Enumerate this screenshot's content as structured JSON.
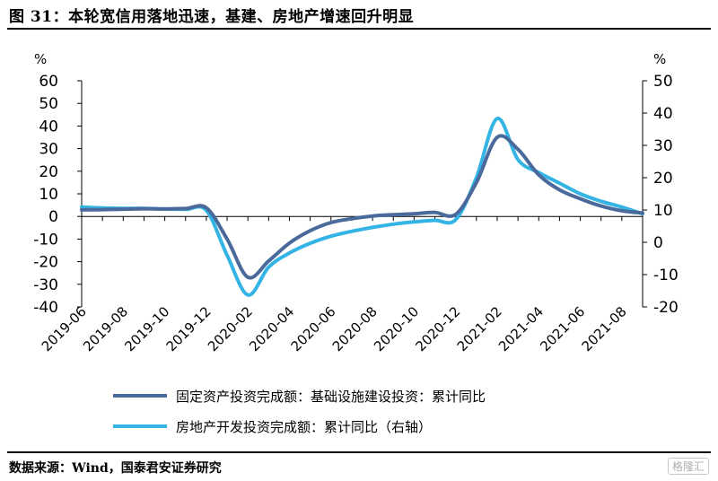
{
  "header": {
    "title": "图 31：本轮宽信用落地迅速，基建、房地产增速回升明显"
  },
  "footer": {
    "source": "数据来源：Wind，国泰君安证券研究",
    "watermark": "格隆汇"
  },
  "chart_data": {
    "type": "line",
    "title": "图 31：本轮宽信用落地迅速，基建、房地产增速回升明显",
    "ylabel_left": "%",
    "ylabel_right": "%",
    "ylim_left": [
      -40,
      60
    ],
    "ylim_right": [
      -20,
      50
    ],
    "yticks_left": [
      60,
      50,
      40,
      30,
      20,
      10,
      0,
      -10,
      -20,
      -30,
      -40
    ],
    "yticks_right": [
      50,
      40,
      30,
      20,
      10,
      0,
      -10,
      -20
    ],
    "x_tick_labels": [
      "2019-06",
      "2019-08",
      "2019-10",
      "2019-12",
      "2020-02",
      "2020-04",
      "2020-06",
      "2020-08",
      "2020-10",
      "2020-12",
      "2021-02",
      "2021-04",
      "2021-06",
      "2021-08"
    ],
    "grid": false,
    "legend_position": "bottom",
    "colors": {
      "series_1": "#4a6a9c",
      "series_2": "#33b4e5"
    },
    "series": [
      {
        "name": "固定资产投资完成额：基础设施建设投资：累计同比",
        "axis": "left",
        "x": [
          "2019-06",
          "2019-07",
          "2019-08",
          "2019-09",
          "2019-10",
          "2019-11",
          "2019-12",
          "2020-01",
          "2020-02",
          "2020-03",
          "2020-04",
          "2020-05",
          "2020-06",
          "2020-07",
          "2020-08",
          "2020-09",
          "2020-10",
          "2020-11",
          "2020-12",
          "2021-01",
          "2021-02",
          "2021-03",
          "2021-04",
          "2021-05",
          "2021-06",
          "2021-07",
          "2021-08",
          "2021-09"
        ],
        "values": [
          2.9,
          3.0,
          3.2,
          3.4,
          3.3,
          3.5,
          3.8,
          -10.0,
          -26.9,
          -19.7,
          -11.8,
          -6.3,
          -2.7,
          -1.0,
          0.2,
          0.8,
          1.2,
          1.8,
          0.9,
          15.0,
          35.0,
          29.7,
          18.4,
          11.8,
          7.8,
          4.6,
          2.5,
          1.5
        ]
      },
      {
        "name": "房地产开发投资完成额：累计同比（右轴）",
        "axis": "right",
        "x": [
          "2019-06",
          "2019-07",
          "2019-08",
          "2019-09",
          "2019-10",
          "2019-11",
          "2019-12",
          "2020-01",
          "2020-02",
          "2020-03",
          "2020-04",
          "2020-05",
          "2020-06",
          "2020-07",
          "2020-08",
          "2020-09",
          "2020-10",
          "2020-11",
          "2020-12",
          "2021-01",
          "2021-02",
          "2021-03",
          "2021-04",
          "2021-05",
          "2021-06",
          "2021-07",
          "2021-08",
          "2021-09"
        ],
        "values": [
          10.9,
          10.6,
          10.5,
          10.5,
          10.3,
          10.2,
          9.9,
          -4.0,
          -16.3,
          -7.7,
          -3.3,
          -0.3,
          1.9,
          3.4,
          4.6,
          5.6,
          6.3,
          6.8,
          7.0,
          20.0,
          38.3,
          25.6,
          21.6,
          18.3,
          15.0,
          12.7,
          10.9,
          8.8
        ]
      }
    ]
  }
}
